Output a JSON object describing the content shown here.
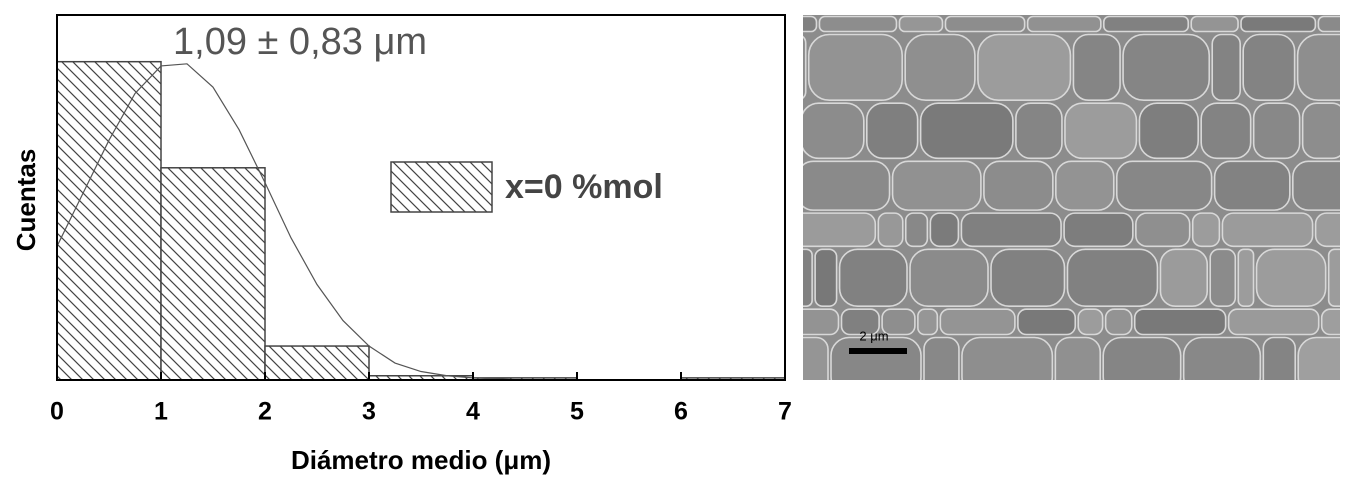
{
  "chart_data": {
    "type": "histogram",
    "annotation": "1,09 ± 0,83 μm",
    "x_label": "Diámetro medio (μm)",
    "y_label": "Cuentas",
    "bins": [
      0,
      1,
      2,
      3,
      4,
      5,
      6,
      7
    ],
    "series": [
      {
        "name": "x=0 %mol",
        "color": "#444444",
        "values": [
          150,
          100,
          16,
          2,
          1,
          0,
          1
        ]
      }
    ],
    "fit": {
      "color": "#555555",
      "x": [
        0,
        0.25,
        0.5,
        0.75,
        1,
        1.25,
        1.5,
        1.75,
        2,
        2.25,
        2.5,
        2.75,
        3,
        3.25,
        3.5,
        3.75,
        4,
        4.5
      ],
      "values": [
        63,
        88,
        113,
        135,
        148,
        149,
        138,
        118,
        93,
        67,
        45,
        28,
        16,
        8,
        4,
        2,
        1,
        0
      ]
    },
    "xlim": [
      0,
      7
    ],
    "xticks": [
      0,
      1,
      2,
      3,
      4,
      5,
      6,
      7
    ],
    "ylim": [
      0,
      172
    ],
    "legend": "upper-right"
  },
  "micrograph": {
    "scale_label": "2 μm"
  }
}
